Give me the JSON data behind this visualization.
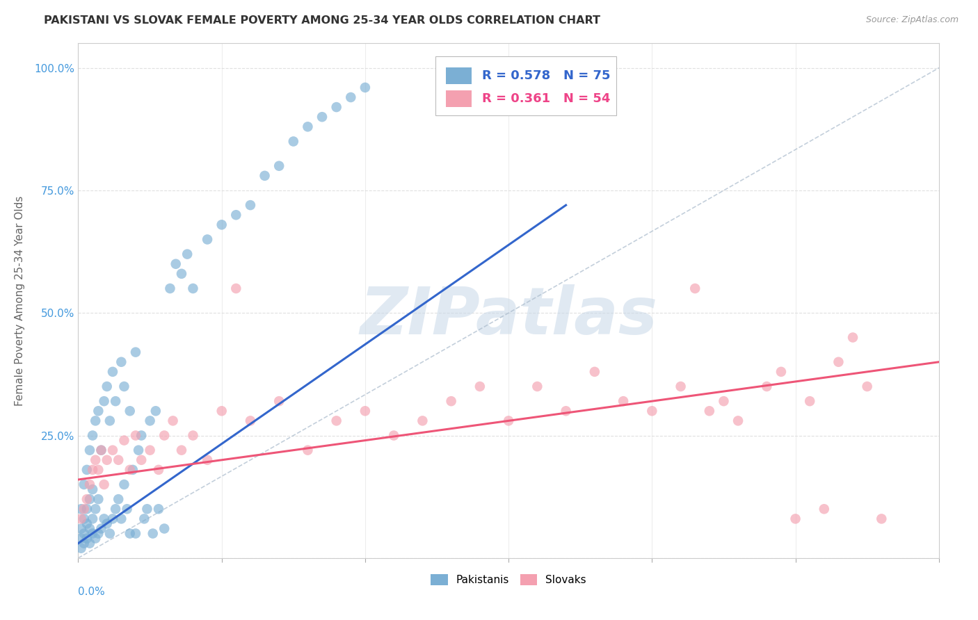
{
  "title": "PAKISTANI VS SLOVAK FEMALE POVERTY AMONG 25-34 YEAR OLDS CORRELATION CHART",
  "source": "Source: ZipAtlas.com",
  "ylabel": "Female Poverty Among 25-34 Year Olds",
  "xmin": 0.0,
  "xmax": 0.3,
  "ymin": 0.0,
  "ymax": 1.05,
  "legend_blue_R": "0.578",
  "legend_blue_N": "75",
  "legend_pink_R": "0.361",
  "legend_pink_N": "54",
  "legend_blue_label": "Pakistanis",
  "legend_pink_label": "Slovaks",
  "blue_color": "#7BAFD4",
  "pink_color": "#F4A0B0",
  "blue_trend_color": "#3366CC",
  "pink_trend_color": "#EE5577",
  "ref_line_color": "#AABBCC",
  "watermark_color_hex": "#C8D8E8",
  "background_color": "#FFFFFF",
  "blue_scatter_x": [
    0.001,
    0.001,
    0.001,
    0.001,
    0.002,
    0.002,
    0.002,
    0.002,
    0.003,
    0.003,
    0.003,
    0.003,
    0.004,
    0.004,
    0.004,
    0.004,
    0.005,
    0.005,
    0.005,
    0.005,
    0.006,
    0.006,
    0.006,
    0.007,
    0.007,
    0.007,
    0.008,
    0.008,
    0.009,
    0.009,
    0.01,
    0.01,
    0.011,
    0.011,
    0.012,
    0.012,
    0.013,
    0.013,
    0.014,
    0.015,
    0.015,
    0.016,
    0.016,
    0.017,
    0.018,
    0.018,
    0.019,
    0.02,
    0.02,
    0.021,
    0.022,
    0.023,
    0.024,
    0.025,
    0.026,
    0.027,
    0.028,
    0.03,
    0.032,
    0.034,
    0.036,
    0.038,
    0.04,
    0.045,
    0.05,
    0.055,
    0.06,
    0.065,
    0.07,
    0.075,
    0.08,
    0.085,
    0.09,
    0.095,
    0.1
  ],
  "blue_scatter_y": [
    0.02,
    0.04,
    0.06,
    0.1,
    0.03,
    0.05,
    0.08,
    0.15,
    0.04,
    0.07,
    0.1,
    0.18,
    0.03,
    0.06,
    0.12,
    0.22,
    0.05,
    0.08,
    0.14,
    0.25,
    0.04,
    0.1,
    0.28,
    0.05,
    0.12,
    0.3,
    0.06,
    0.22,
    0.08,
    0.32,
    0.07,
    0.35,
    0.05,
    0.28,
    0.08,
    0.38,
    0.1,
    0.32,
    0.12,
    0.08,
    0.4,
    0.15,
    0.35,
    0.1,
    0.05,
    0.3,
    0.18,
    0.05,
    0.42,
    0.22,
    0.25,
    0.08,
    0.1,
    0.28,
    0.05,
    0.3,
    0.1,
    0.06,
    0.55,
    0.6,
    0.58,
    0.62,
    0.55,
    0.65,
    0.68,
    0.7,
    0.72,
    0.78,
    0.8,
    0.85,
    0.88,
    0.9,
    0.92,
    0.94,
    0.96
  ],
  "pink_scatter_x": [
    0.001,
    0.002,
    0.003,
    0.004,
    0.005,
    0.006,
    0.007,
    0.008,
    0.009,
    0.01,
    0.012,
    0.014,
    0.016,
    0.018,
    0.02,
    0.022,
    0.025,
    0.028,
    0.03,
    0.033,
    0.036,
    0.04,
    0.045,
    0.05,
    0.055,
    0.06,
    0.07,
    0.08,
    0.09,
    0.1,
    0.11,
    0.12,
    0.13,
    0.14,
    0.15,
    0.16,
    0.17,
    0.18,
    0.19,
    0.2,
    0.21,
    0.215,
    0.22,
    0.225,
    0.23,
    0.24,
    0.245,
    0.25,
    0.255,
    0.26,
    0.265,
    0.27,
    0.275,
    0.28
  ],
  "pink_scatter_y": [
    0.08,
    0.1,
    0.12,
    0.15,
    0.18,
    0.2,
    0.18,
    0.22,
    0.15,
    0.2,
    0.22,
    0.2,
    0.24,
    0.18,
    0.25,
    0.2,
    0.22,
    0.18,
    0.25,
    0.28,
    0.22,
    0.25,
    0.2,
    0.3,
    0.55,
    0.28,
    0.32,
    0.22,
    0.28,
    0.3,
    0.25,
    0.28,
    0.32,
    0.35,
    0.28,
    0.35,
    0.3,
    0.38,
    0.32,
    0.3,
    0.35,
    0.55,
    0.3,
    0.32,
    0.28,
    0.35,
    0.38,
    0.08,
    0.32,
    0.1,
    0.4,
    0.45,
    0.35,
    0.08
  ],
  "blue_trend_x": [
    0.0,
    0.17
  ],
  "blue_trend_y": [
    0.03,
    0.72
  ],
  "pink_trend_x": [
    0.0,
    0.3
  ],
  "pink_trend_y": [
    0.16,
    0.4
  ]
}
